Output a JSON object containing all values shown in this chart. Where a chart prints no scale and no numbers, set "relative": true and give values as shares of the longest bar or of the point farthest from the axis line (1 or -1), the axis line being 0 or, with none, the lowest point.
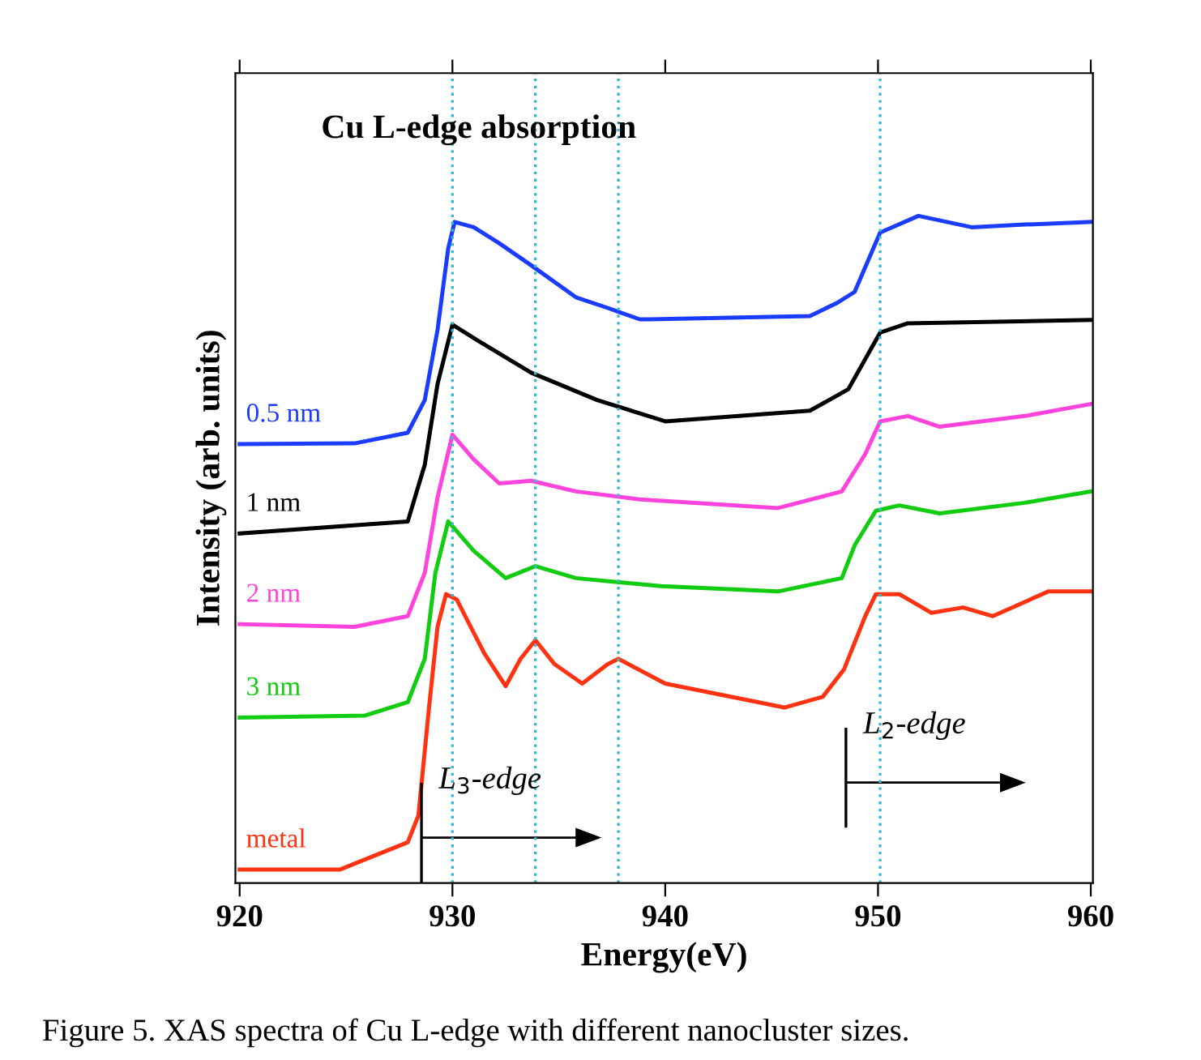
{
  "chart_data": {
    "type": "line",
    "relative": true,
    "xlabel": "Energy(eV)",
    "ylabel": "Intensity (arb. units)",
    "xlim": [
      919.8,
      960.1
    ],
    "xticks": [
      920,
      930,
      940,
      950,
      960
    ],
    "tick_labels": "x",
    "grid": false,
    "legend": false,
    "marker": "none",
    "line_style": "solid",
    "series": [
      {
        "name": "0.5 nm",
        "color": "#1a3cff",
        "x": [
          920.0,
          925.4,
          927.9,
          928.7,
          929.3,
          929.8,
          930.1,
          931.0,
          932.2,
          933.7,
          935.8,
          937.3,
          938.8,
          939.3,
          946.8,
          948.1,
          948.9,
          950.1,
          951.9,
          954.4,
          956.9,
          960.0
        ],
        "values": [
          0.658,
          0.659,
          0.675,
          0.724,
          0.829,
          0.951,
          0.991,
          0.983,
          0.959,
          0.926,
          0.878,
          0.862,
          0.845,
          0.845,
          0.85,
          0.87,
          0.886,
          0.975,
          1.0,
          0.983,
          0.987,
          0.991
        ]
      },
      {
        "name": "1 nm",
        "color": "#000000",
        "x": [
          920.0,
          927.9,
          928.7,
          929.3,
          930.0,
          931.2,
          933.7,
          936.8,
          940.0,
          946.8,
          948.6,
          950.1,
          951.4,
          960.0
        ],
        "values": [
          0.524,
          0.542,
          0.627,
          0.748,
          0.837,
          0.813,
          0.765,
          0.724,
          0.692,
          0.708,
          0.74,
          0.825,
          0.839,
          0.844
        ]
      },
      {
        "name": "2 nm",
        "color": "#ff44dd",
        "x": [
          920.0,
          925.4,
          927.9,
          928.7,
          929.3,
          930.0,
          931.0,
          932.2,
          933.7,
          935.8,
          938.8,
          945.3,
          948.3,
          949.4,
          950.1,
          951.4,
          952.9,
          956.9,
          960.0
        ],
        "values": [
          0.388,
          0.384,
          0.4,
          0.465,
          0.578,
          0.672,
          0.635,
          0.599,
          0.603,
          0.587,
          0.575,
          0.562,
          0.587,
          0.643,
          0.692,
          0.7,
          0.684,
          0.7,
          0.718
        ]
      },
      {
        "name": "3 nm",
        "color": "#11cc11",
        "x": [
          920.0,
          925.9,
          927.9,
          928.7,
          929.2,
          929.8,
          931.0,
          932.5,
          933.9,
          935.8,
          939.8,
          945.3,
          948.3,
          948.9,
          949.9,
          951.0,
          952.9,
          956.9,
          960.0
        ],
        "values": [
          0.248,
          0.251,
          0.271,
          0.336,
          0.465,
          0.542,
          0.498,
          0.457,
          0.475,
          0.457,
          0.445,
          0.437,
          0.457,
          0.506,
          0.558,
          0.566,
          0.554,
          0.57,
          0.587
        ]
      },
      {
        "name": "metal",
        "color": "#ff3311",
        "x": [
          920.0,
          924.7,
          927.9,
          928.4,
          928.9,
          929.3,
          929.7,
          930.2,
          931.5,
          932.5,
          933.2,
          933.9,
          934.8,
          936.1,
          937.3,
          937.8,
          940.0,
          945.6,
          947.4,
          948.4,
          949.4,
          949.9,
          951.0,
          952.5,
          954.0,
          955.4,
          958.0,
          960.0
        ],
        "values": [
          0.02,
          0.02,
          0.061,
          0.101,
          0.263,
          0.384,
          0.433,
          0.425,
          0.344,
          0.295,
          0.336,
          0.364,
          0.328,
          0.299,
          0.328,
          0.336,
          0.299,
          0.263,
          0.279,
          0.32,
          0.4,
          0.433,
          0.433,
          0.405,
          0.413,
          0.4,
          0.437,
          0.437
        ]
      }
    ],
    "ref_lines": [
      {
        "axis": "x",
        "value": 930.0,
        "color": "#33bbcc",
        "line_style": "dotted"
      },
      {
        "axis": "x",
        "value": 933.9,
        "color": "#33bbcc",
        "line_style": "dotted"
      },
      {
        "axis": "x",
        "value": 937.8,
        "color": "#33bbcc",
        "line_style": "dotted"
      },
      {
        "axis": "x",
        "value": 950.1,
        "color": "#33bbcc",
        "line_style": "dotted"
      }
    ],
    "annotations": [
      "Cu L-edge absorption",
      "L$_{3}$-edge",
      "L$_{2}$-edge",
      "Figure 5. XAS spectra of Cu L-edge with different nanocluster sizes."
    ]
  }
}
